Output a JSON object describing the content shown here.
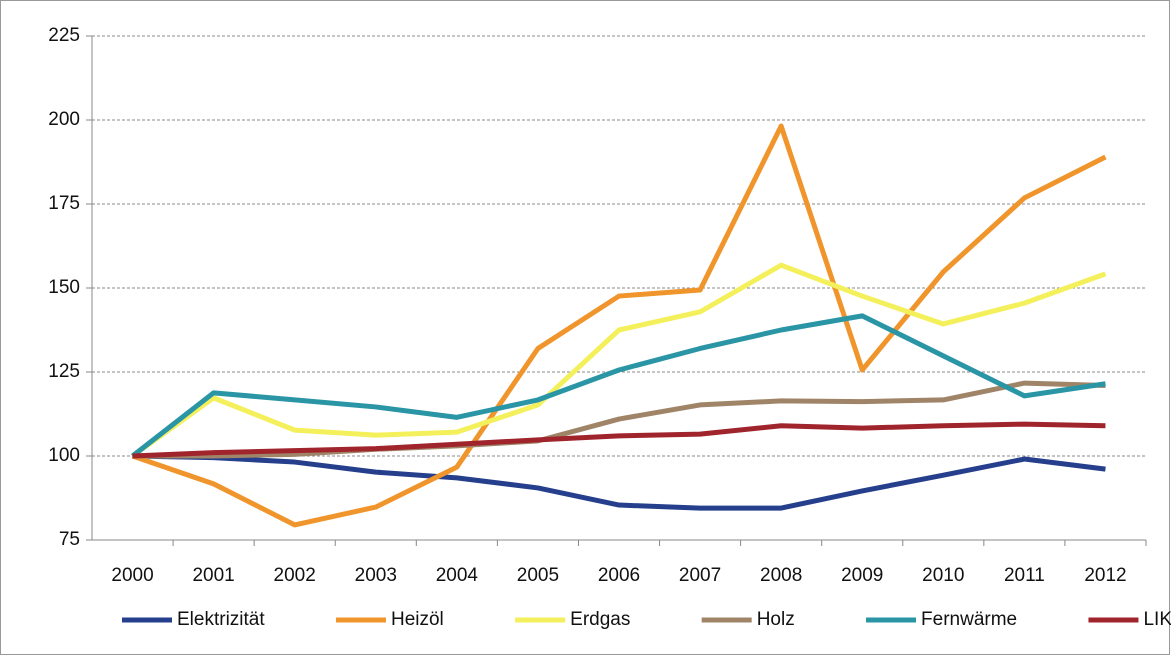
{
  "chart_data": {
    "type": "line",
    "categories": [
      "2000",
      "2001",
      "2002",
      "2003",
      "2004",
      "2005",
      "2006",
      "2007",
      "2008",
      "2009",
      "2010",
      "2011",
      "2012"
    ],
    "series": [
      {
        "name": "Elektrizität",
        "color": "#253f8c",
        "values": [
          100,
          99.5,
          98.2,
          95.2,
          93.5,
          90.5,
          85.4,
          84.5,
          84.5,
          89.6,
          94.3,
          99.1,
          96.1
        ]
      },
      {
        "name": "Heizöl",
        "color": "#f0952c",
        "values": [
          100,
          91.7,
          79.5,
          84.8,
          96.7,
          132,
          147.6,
          149.4,
          198.2,
          125.6,
          154.8,
          176.8,
          189
        ]
      },
      {
        "name": "Erdgas",
        "color": "#f3f05c",
        "values": [
          100,
          117.3,
          107.7,
          106.2,
          107.1,
          115.2,
          137.5,
          142.9,
          156.8,
          147.6,
          139.3,
          145.5,
          154.2
        ]
      },
      {
        "name": "Holz",
        "color": "#a08468",
        "values": [
          100,
          100,
          100.5,
          102,
          103,
          104.5,
          111,
          115.2,
          116.4,
          116.2,
          116.7,
          121.7,
          121
        ]
      },
      {
        "name": "Fernwärme",
        "color": "#2995a5",
        "values": [
          100,
          118.8,
          116.7,
          114.6,
          111.5,
          116.7,
          125.6,
          132,
          137.5,
          141.7,
          129.8,
          117.9,
          121.5
        ]
      },
      {
        "name": "LIK",
        "color": "#a0242c",
        "values": [
          100,
          101,
          101.6,
          102.2,
          103.5,
          104.8,
          106,
          106.5,
          109,
          108.3,
          109,
          109.5,
          109
        ]
      }
    ],
    "ylim": [
      75,
      225
    ],
    "yticks": [
      75,
      100,
      125,
      150,
      175,
      200,
      225
    ],
    "grid": true,
    "legend": "bottom"
  }
}
